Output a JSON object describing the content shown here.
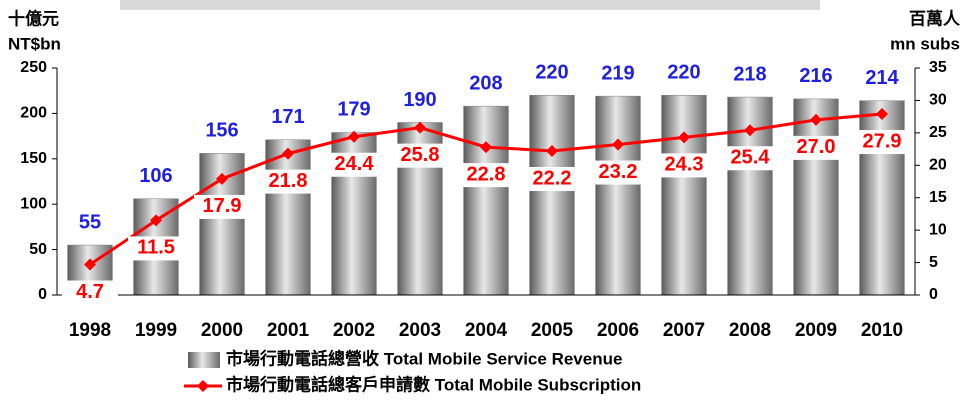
{
  "chart_data": {
    "type": "bar",
    "ylabel": [
      "十億元",
      "NT$bn"
    ],
    "y2label": [
      "百萬人",
      "mn subs"
    ],
    "categories": [
      "1998",
      "1999",
      "2000",
      "2001",
      "2002",
      "2003",
      "2004",
      "2005",
      "2006",
      "2007",
      "2008",
      "2009",
      "2010"
    ],
    "series": [
      {
        "name": "市場行動電話總營收 Total Mobile Service Revenue",
        "type": "bar",
        "color": "#808080",
        "label_color": "#1f1fe0",
        "values": [
          55,
          106,
          156,
          171,
          179,
          190,
          208,
          220,
          219,
          220,
          218,
          216,
          214
        ]
      },
      {
        "name": "市場行動電話總客戶申請數 Total Mobile Subscription",
        "type": "line",
        "axis": "y2",
        "color": "#ff0000",
        "values": [
          4.7,
          11.5,
          17.9,
          21.8,
          24.4,
          25.8,
          22.8,
          22.2,
          23.2,
          24.3,
          25.4,
          27.0,
          27.9
        ],
        "value_labels": [
          "4.7",
          "11.5",
          "17.9",
          "21.8",
          "24.4",
          "25.8",
          "22.8",
          "22.2",
          "23.2",
          "24.3",
          "25.4",
          "27.0",
          "27.9"
        ]
      }
    ],
    "ylim": [
      0,
      250
    ],
    "yticks": [
      0,
      50,
      100,
      150,
      200,
      250
    ],
    "y2lim": [
      0,
      35
    ],
    "y2ticks": [
      0,
      5,
      10,
      15,
      20,
      25,
      30,
      35
    ]
  }
}
